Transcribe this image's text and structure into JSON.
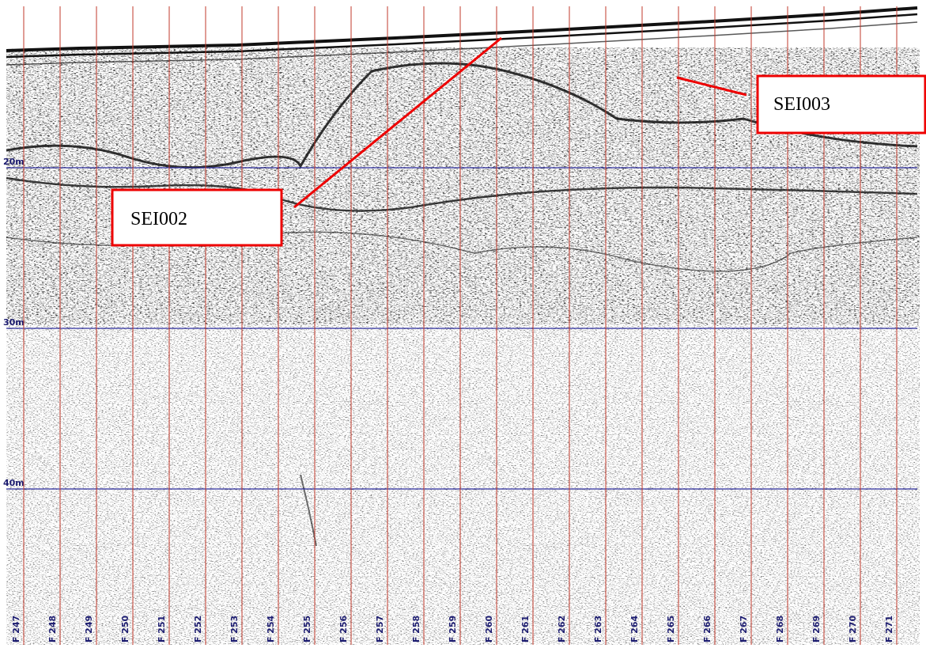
{
  "depth_lines": [
    "20m",
    "30m",
    "40m"
  ],
  "fixes": [
    "F 247",
    "F 248",
    "F 249",
    "F 250",
    "F 251",
    "F 252",
    "F 253",
    "F 254",
    "F 255",
    "F 256",
    "F 257",
    "F 258",
    "F 259",
    "F 260",
    "F 261",
    "F 262",
    "F 263",
    "F 264",
    "F 265",
    "F 266",
    "F 267",
    "F 268",
    "F 269",
    "F 270",
    "F 271"
  ],
  "annotations": [
    "SEI002",
    "SEI003"
  ]
}
